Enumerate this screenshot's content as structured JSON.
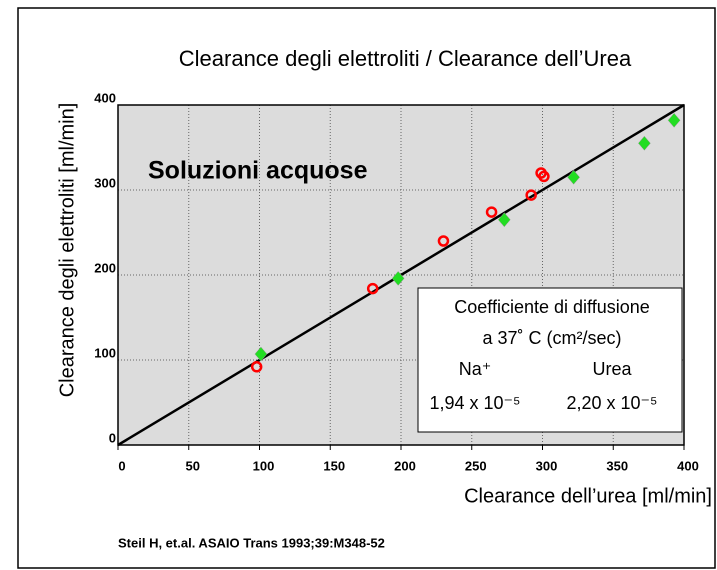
{
  "chart_data": {
    "type": "scatter",
    "title": "Clearance degli elettroliti / Clearance dell’Urea",
    "x_label": "Clearance dell’urea [ml/min]",
    "y_label": "Clearance degli elettroliti [ml/min]",
    "annotation": "Soluzioni acquose",
    "box_lines": [
      "Coefficiente di diffusione",
      "a  37˚ C (cm²/sec)"
    ],
    "box_columns": [
      [
        "Na⁺",
        "1,94 x 10⁻⁵"
      ],
      [
        "Urea",
        "2,20 x 10⁻⁵"
      ]
    ],
    "source": "Steil H, et.al. ASAIO Trans 1993;39:M348-52",
    "xlim": [
      0,
      400
    ],
    "ylim": [
      0,
      400
    ],
    "xticks": [
      0,
      50,
      100,
      150,
      200,
      250,
      300,
      350,
      400
    ],
    "yticks": [
      0,
      100,
      200,
      300,
      400
    ],
    "grid": true,
    "reference_line": {
      "x": [
        0,
        400
      ],
      "y": [
        0,
        400
      ],
      "color": "#000000"
    },
    "series": [
      {
        "marker": "circle",
        "color": "#ff0000",
        "x": [
          98,
          180,
          230,
          264,
          292,
          299,
          301
        ],
        "values": [
          92,
          184,
          240,
          274,
          294,
          320,
          316
        ]
      },
      {
        "marker": "diamond",
        "color": "#22dd22",
        "x": [
          101,
          198,
          273,
          322,
          372,
          393
        ],
        "values": [
          107,
          196,
          265,
          315,
          355,
          382
        ]
      }
    ]
  }
}
